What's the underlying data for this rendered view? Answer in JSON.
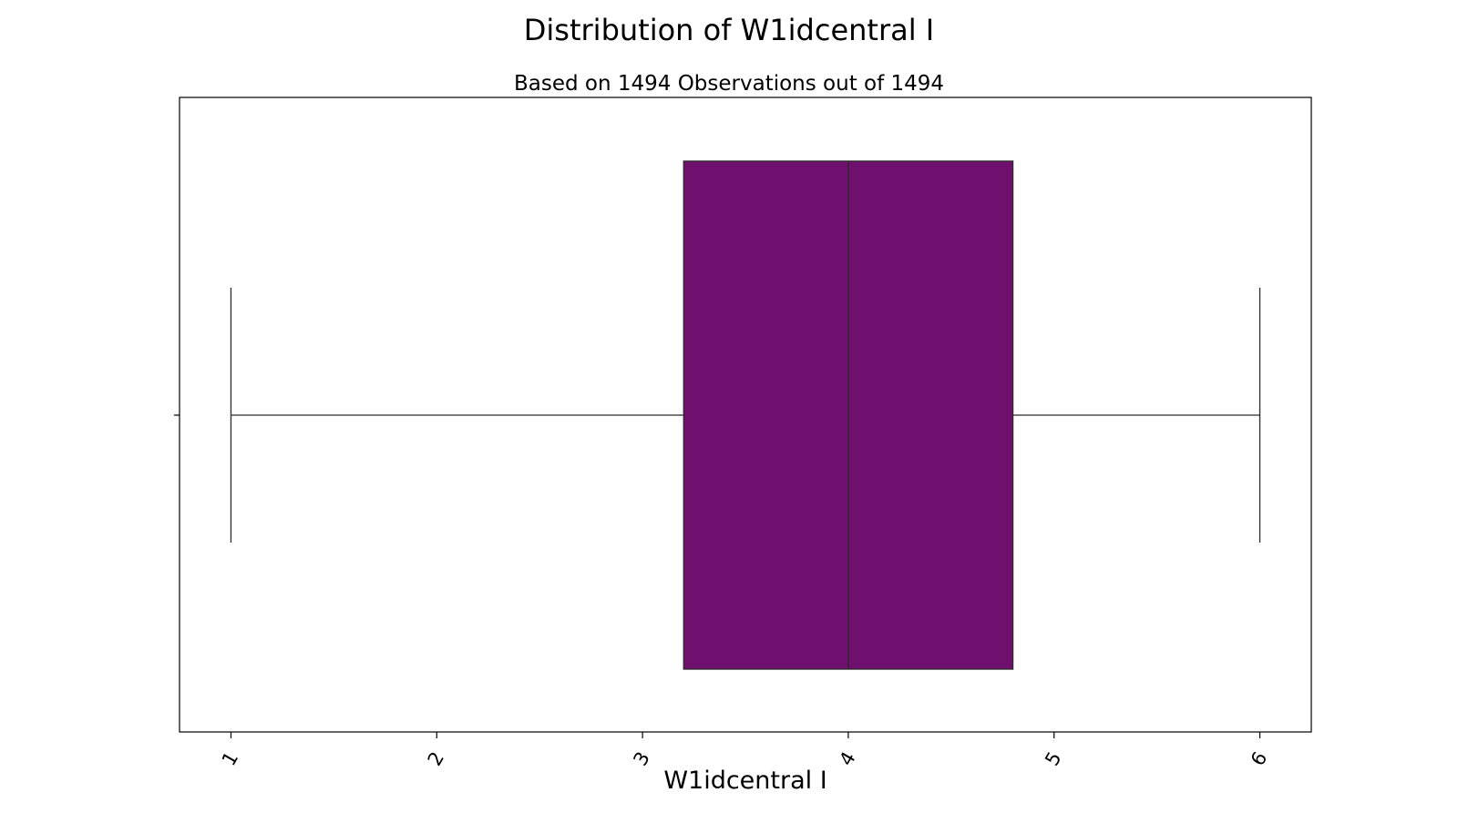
{
  "chart_data": {
    "type": "box",
    "title": "Distribution of W1idcentral I",
    "subtitle": "Based on 1494 Observations out of 1494",
    "xlabel": "W1idcentral I",
    "ylabel": "",
    "xlim": [
      0.75,
      6.25
    ],
    "xticks": [
      1,
      2,
      3,
      4,
      5,
      6
    ],
    "xtick_labels": [
      "1",
      "2",
      "3",
      "4",
      "5",
      "6"
    ],
    "box": {
      "whisker_low": 1,
      "q1": 3.2,
      "median": 4,
      "q3": 4.8,
      "whisker_high": 6
    },
    "colors": {
      "box_fill": "#70106e",
      "line": "#2b2b2b"
    },
    "grid": false
  }
}
